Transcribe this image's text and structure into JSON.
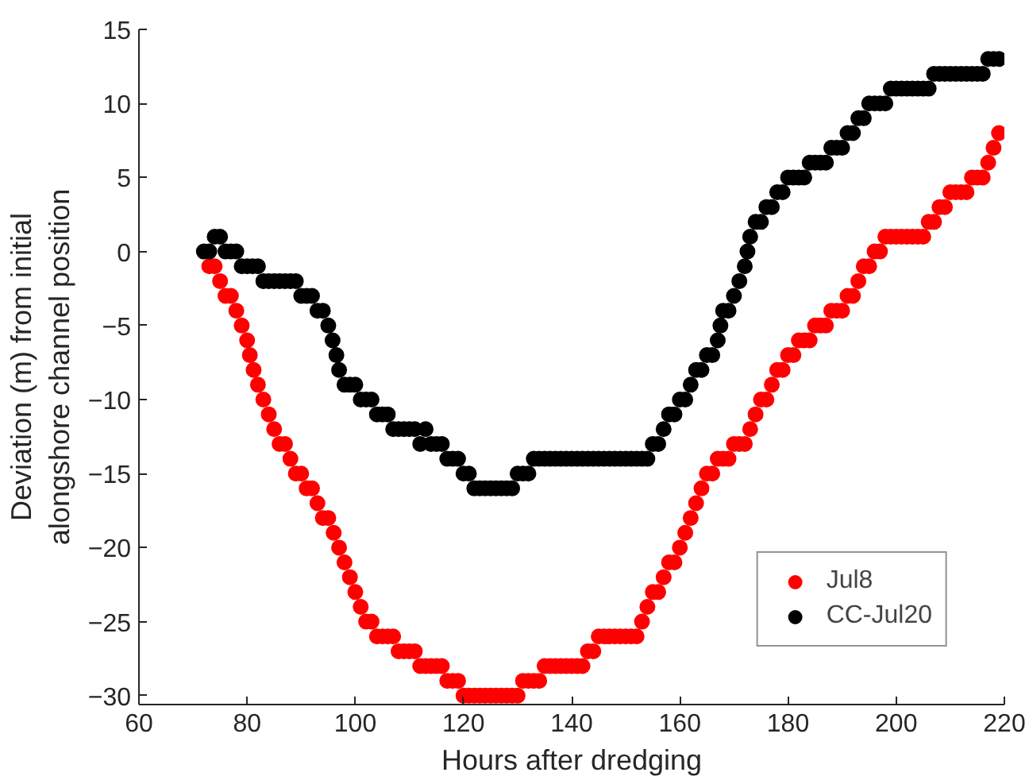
{
  "chart_data": {
    "type": "scatter",
    "xlabel": "Hours after dredging",
    "ylabel": "Deviation (m) from initial alongshore channel position",
    "xlim": [
      60,
      220
    ],
    "xticks": [
      60,
      80,
      100,
      120,
      140,
      160,
      180,
      200,
      220
    ],
    "ylim": [
      -30.6,
      15
    ],
    "yticks": [
      -30,
      -25,
      -20,
      -15,
      -10,
      -5,
      0,
      5,
      10,
      15
    ],
    "grid": false,
    "legend": "bottom right",
    "marker": "circle",
    "series": [
      {
        "name": "Jul8",
        "color": "#ff0000",
        "x": [
          73,
          74,
          75,
          76,
          77,
          78,
          79,
          80,
          80.5,
          81.2,
          82,
          83,
          84,
          85,
          86,
          87,
          88,
          89,
          90,
          91,
          92,
          93,
          94,
          95,
          96,
          97,
          98,
          99,
          100,
          101,
          102,
          103,
          104,
          105,
          106,
          107,
          108,
          109,
          110,
          111,
          112,
          113,
          114,
          115,
          116,
          117,
          118,
          119,
          120,
          121,
          122,
          123,
          124,
          125,
          126,
          127,
          128,
          129,
          130,
          131,
          132,
          133,
          134,
          135,
          136,
          137,
          138,
          139,
          140,
          141,
          142,
          143,
          144,
          145,
          146,
          147,
          148,
          149,
          150,
          151,
          152,
          153,
          154,
          155,
          156,
          157,
          158,
          159,
          160,
          161,
          162,
          163,
          164,
          165,
          166,
          167,
          168,
          169,
          170,
          171,
          172,
          173,
          174,
          175,
          176,
          177,
          178,
          179,
          180,
          181,
          182,
          183,
          184,
          185,
          186,
          187,
          188,
          189,
          190,
          191,
          192,
          193,
          194,
          195,
          196,
          197,
          198,
          199,
          200,
          201,
          202,
          203,
          204,
          205,
          206,
          207,
          208,
          209,
          210,
          211,
          212,
          213,
          214,
          215,
          216,
          217,
          218,
          219
        ],
        "values": [
          -1,
          -1,
          -2,
          -3,
          -3,
          -4,
          -5,
          -6,
          -7,
          -8,
          -9,
          -10,
          -11,
          -12,
          -13,
          -13,
          -14,
          -15,
          -15,
          -16,
          -16,
          -17,
          -18,
          -18,
          -19,
          -20,
          -21,
          -22,
          -23,
          -24,
          -25,
          -25,
          -26,
          -26,
          -26,
          -26,
          -27,
          -27,
          -27,
          -27,
          -28,
          -28,
          -28,
          -28,
          -28,
          -29,
          -29,
          -29,
          -30,
          -30,
          -30,
          -30,
          -30,
          -30,
          -30,
          -30,
          -30,
          -30,
          -30,
          -29,
          -29,
          -29,
          -29,
          -28,
          -28,
          -28,
          -28,
          -28,
          -28,
          -28,
          -28,
          -27,
          -27,
          -26,
          -26,
          -26,
          -26,
          -26,
          -26,
          -26,
          -26,
          -25,
          -24,
          -23,
          -23,
          -22,
          -21,
          -21,
          -20,
          -19,
          -18,
          -17,
          -16,
          -15,
          -15,
          -14,
          -14,
          -14,
          -13,
          -13,
          -13,
          -12,
          -11,
          -10,
          -10,
          -9,
          -8,
          -8,
          -7,
          -7,
          -6,
          -6,
          -6,
          -5,
          -5,
          -5,
          -4,
          -4,
          -4,
          -3,
          -3,
          -2,
          -1,
          -1,
          0,
          0,
          1,
          1,
          1,
          1,
          1,
          1,
          1,
          1,
          2,
          2,
          3,
          3,
          4,
          4,
          4,
          4,
          5,
          5,
          5,
          6,
          7,
          8
        ]
      },
      {
        "name": "CC-Jul20",
        "color": "#000000",
        "x": [
          72,
          73,
          74,
          75,
          76,
          77,
          78,
          79,
          80,
          81,
          82,
          83,
          84,
          85,
          86,
          87,
          88,
          89,
          90,
          91,
          92,
          93,
          94,
          95,
          95.8,
          96.5,
          97,
          98,
          99,
          100,
          101,
          102,
          103,
          104,
          105,
          106,
          107,
          108,
          109,
          110,
          111,
          112,
          113,
          114,
          115,
          116,
          117,
          118,
          119,
          120,
          121,
          122,
          123,
          124,
          125,
          126,
          127,
          128,
          129,
          130,
          131,
          132,
          133,
          134,
          135,
          136,
          137,
          138,
          139,
          140,
          141,
          142,
          143,
          144,
          145,
          146,
          147,
          148,
          149,
          150,
          151,
          152,
          153,
          154,
          155,
          156,
          157,
          158,
          159,
          160,
          161,
          162,
          163,
          164,
          165,
          166,
          167,
          167.5,
          168,
          169,
          170,
          171,
          172,
          172.5,
          173,
          174,
          175,
          176,
          177,
          178,
          179,
          180,
          181,
          182,
          183,
          184,
          185,
          186,
          187,
          188,
          189,
          190,
          191,
          192,
          193,
          194,
          195,
          196,
          197,
          198,
          199,
          200,
          201,
          202,
          203,
          204,
          205,
          206,
          207,
          208,
          209,
          210,
          211,
          212,
          213,
          214,
          215,
          216,
          217,
          218,
          219
        ],
        "values": [
          0,
          0,
          1,
          1,
          0,
          0,
          0,
          -1,
          -1,
          -1,
          -1,
          -2,
          -2,
          -2,
          -2,
          -2,
          -2,
          -2,
          -3,
          -3,
          -3,
          -4,
          -4,
          -5,
          -6,
          -7,
          -8,
          -9,
          -9,
          -9,
          -10,
          -10,
          -10,
          -11,
          -11,
          -11,
          -12,
          -12,
          -12,
          -12,
          -12,
          -13,
          -12,
          -13,
          -13,
          -13,
          -14,
          -14,
          -14,
          -15,
          -15,
          -16,
          -16,
          -16,
          -16,
          -16,
          -16,
          -16,
          -16,
          -15,
          -15,
          -15,
          -14,
          -14,
          -14,
          -14,
          -14,
          -14,
          -14,
          -14,
          -14,
          -14,
          -14,
          -14,
          -14,
          -14,
          -14,
          -14,
          -14,
          -14,
          -14,
          -14,
          -14,
          -14,
          -13,
          -13,
          -12,
          -11,
          -11,
          -10,
          -10,
          -9,
          -8,
          -8,
          -7,
          -7,
          -6,
          -5,
          -4,
          -4,
          -3,
          -2,
          -1,
          0,
          1,
          2,
          2,
          3,
          3,
          4,
          4,
          5,
          5,
          5,
          5,
          6,
          6,
          6,
          6,
          7,
          7,
          7,
          8,
          8,
          9,
          9,
          10,
          10,
          10,
          10,
          11,
          11,
          11,
          11,
          11,
          11,
          11,
          11,
          12,
          12,
          12,
          12,
          12,
          12,
          12,
          12,
          12,
          12,
          13,
          13,
          13
        ]
      }
    ]
  }
}
